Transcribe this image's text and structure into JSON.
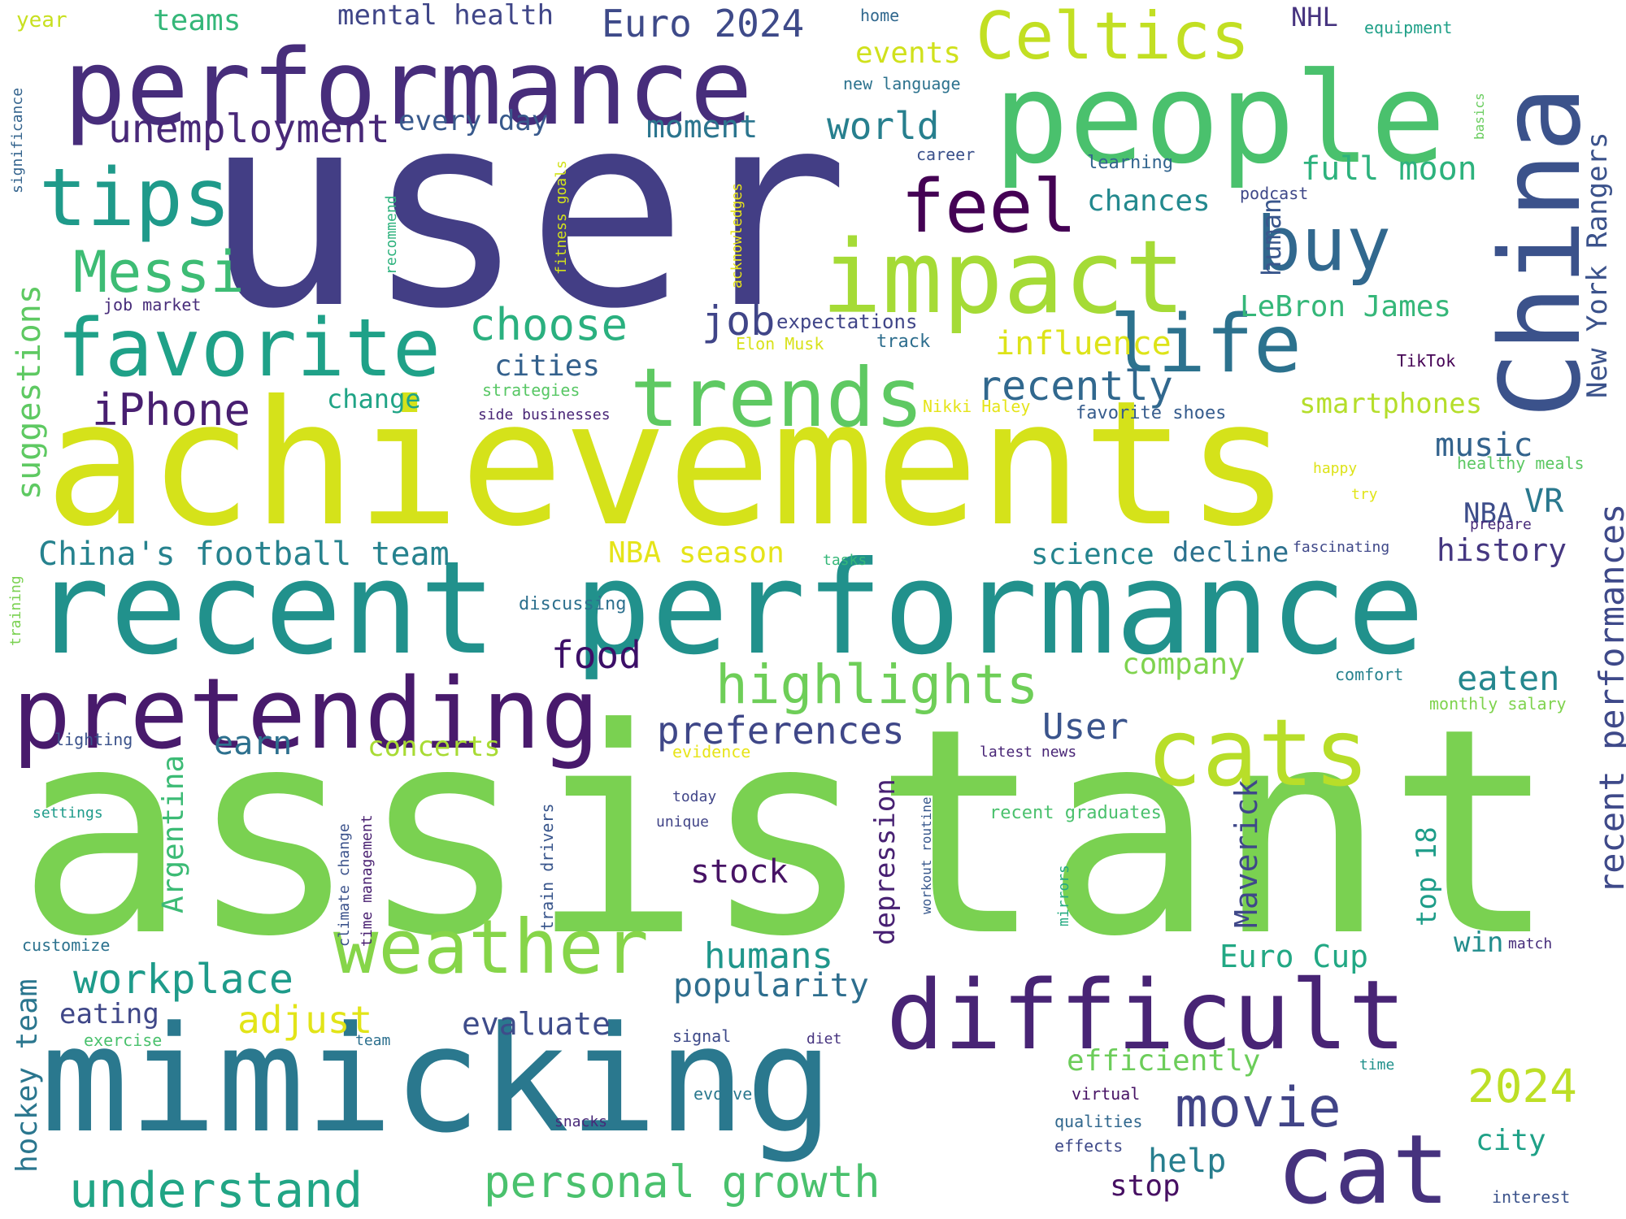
{
  "words": [
    {
      "text": "user",
      "color": "#433e85"
    },
    {
      "text": "assistant",
      "color": "#7ad151"
    },
    {
      "text": "achievements",
      "color": "#d5e21a"
    },
    {
      "text": "recent performance",
      "color": "#21918c"
    },
    {
      "text": "mimicking",
      "color": "#2a788e"
    },
    {
      "text": "performance",
      "color": "#472d7b"
    },
    {
      "text": "people",
      "color": "#4ac16d"
    },
    {
      "text": "China",
      "color": "#3b528b"
    },
    {
      "text": "difficult",
      "color": "#482475"
    },
    {
      "text": "impact",
      "color": "#a5db36"
    },
    {
      "text": "pretending",
      "color": "#481a6c"
    },
    {
      "text": "cat",
      "color": "#46327e"
    },
    {
      "text": "cats",
      "color": "#b8de29"
    },
    {
      "text": "trends",
      "color": "#5ec962"
    },
    {
      "text": "favorite",
      "color": "#1fa188"
    },
    {
      "text": "weather",
      "color": "#86d549"
    },
    {
      "text": "tips",
      "color": "#1f9a8a"
    },
    {
      "text": "life",
      "color": "#2c728e"
    },
    {
      "text": "feel",
      "color": "#440154"
    },
    {
      "text": "buy",
      "color": "#31688e"
    },
    {
      "text": "Celtics",
      "color": "#c2df23"
    },
    {
      "text": "Messi",
      "color": "#3dbc74"
    },
    {
      "text": "highlights",
      "color": "#6ece58"
    },
    {
      "text": "movie",
      "color": "#414487"
    },
    {
      "text": "understand",
      "color": "#21a585"
    },
    {
      "text": "personal growth",
      "color": "#4ac16d"
    },
    {
      "text": "workplace",
      "color": "#1e9b8a"
    },
    {
      "text": "recent performances",
      "color": "#3e4989"
    },
    {
      "text": "unemployment",
      "color": "#482878"
    },
    {
      "text": "choose",
      "color": "#2ab07f"
    },
    {
      "text": "recently",
      "color": "#31688e"
    },
    {
      "text": "iPhone",
      "color": "#481f70"
    },
    {
      "text": "suggestions",
      "color": "#5ec962"
    },
    {
      "text": "Euro 2024",
      "color": "#3e4a89"
    },
    {
      "text": "world",
      "color": "#277f8e"
    },
    {
      "text": "2024",
      "color": "#bddf26"
    },
    {
      "text": "China's football team",
      "color": "#26828e"
    },
    {
      "text": "preferences",
      "color": "#3f4788"
    },
    {
      "text": "humans",
      "color": "#1f968b"
    },
    {
      "text": "adjust",
      "color": "#e2e418"
    },
    {
      "text": "popularity",
      "color": "#2e6e8e"
    },
    {
      "text": "job",
      "color": "#404588"
    },
    {
      "text": "LeBron James",
      "color": "#35b779"
    },
    {
      "text": "New York Rangers",
      "color": "#3b528b"
    },
    {
      "text": "food",
      "color": "#3c0f67"
    },
    {
      "text": "full moon",
      "color": "#2db27d"
    },
    {
      "text": "Maverick",
      "color": "#3f4889"
    },
    {
      "text": "Argentina",
      "color": "#3cbb75"
    },
    {
      "text": "influence",
      "color": "#dde318"
    },
    {
      "text": "music",
      "color": "#33638d"
    },
    {
      "text": "mental health",
      "color": "#404688"
    },
    {
      "text": "moment",
      "color": "#2b758e"
    },
    {
      "text": "events",
      "color": "#d0e11c"
    },
    {
      "text": "cities",
      "color": "#34618d"
    },
    {
      "text": "eaten",
      "color": "#24878e"
    },
    {
      "text": "User",
      "color": "#3a548c"
    },
    {
      "text": "chances",
      "color": "#23898e"
    },
    {
      "text": "depression",
      "color": "#482173"
    },
    {
      "text": "hockey team",
      "color": "#2a768e"
    },
    {
      "text": "evaluate",
      "color": "#3e4c8a"
    },
    {
      "text": "help",
      "color": "#277e8e"
    },
    {
      "text": "Euro Cup",
      "color": "#22a884"
    },
    {
      "text": "history",
      "color": "#453781"
    },
    {
      "text": "company",
      "color": "#7fd34e"
    },
    {
      "text": "science",
      "color": "#25848e"
    },
    {
      "text": "stock",
      "color": "#471365"
    },
    {
      "text": "NBA season",
      "color": "#e5e419"
    },
    {
      "text": "decline",
      "color": "#2c718e"
    },
    {
      "text": "every day",
      "color": "#38598c"
    },
    {
      "text": "teams",
      "color": "#35b779"
    },
    {
      "text": "smartphones",
      "color": "#b5de2b"
    },
    {
      "text": "efficiently",
      "color": "#6ccd5a"
    },
    {
      "text": "top 18",
      "color": "#1e9d89"
    },
    {
      "text": "concerts",
      "color": "#a8db34"
    },
    {
      "text": "earn",
      "color": "#2d708e"
    },
    {
      "text": "eating",
      "color": "#3f4788"
    },
    {
      "text": "win",
      "color": "#228d8d"
    },
    {
      "text": "stop",
      "color": "#471063"
    },
    {
      "text": "city",
      "color": "#1fa187"
    },
    {
      "text": "change",
      "color": "#20a486"
    },
    {
      "text": "NBA",
      "color": "#3d4d8a"
    },
    {
      "text": "VR",
      "color": "#2a788e"
    },
    {
      "text": "NHL",
      "color": "#46337f"
    },
    {
      "text": "human",
      "color": "#39568c"
    },
    {
      "text": "year",
      "color": "#c8e020"
    },
    {
      "text": "expectations",
      "color": "#404588"
    },
    {
      "text": "Elon Musk",
      "color": "#d8e219"
    },
    {
      "text": "strategies",
      "color": "#58c765"
    },
    {
      "text": "side businesses",
      "color": "#482576"
    },
    {
      "text": "Nikki Haley",
      "color": "#e5e419"
    },
    {
      "text": "favorite shoes",
      "color": "#365c8d"
    },
    {
      "text": "TikTok",
      "color": "#440154"
    },
    {
      "text": "track",
      "color": "#2e6e8e"
    },
    {
      "text": "job market",
      "color": "#472c7a"
    },
    {
      "text": "podcast",
      "color": "#3f4889"
    },
    {
      "text": "learning",
      "color": "#32648e"
    },
    {
      "text": "career",
      "color": "#3b518b"
    },
    {
      "text": "new language",
      "color": "#2c728e"
    },
    {
      "text": "home",
      "color": "#31688e"
    },
    {
      "text": "equipment",
      "color": "#1fa088"
    },
    {
      "text": "significance",
      "color": "#33638d"
    },
    {
      "text": "recommend",
      "color": "#2db27d"
    },
    {
      "text": "fitness goals",
      "color": "#d2e21b"
    },
    {
      "text": "acknowledges",
      "color": "#e7e419"
    },
    {
      "text": "basics",
      "color": "#67cc5c"
    },
    {
      "text": "happy",
      "color": "#dde318"
    },
    {
      "text": "try",
      "color": "#e1e418"
    },
    {
      "text": "healthy meals",
      "color": "#5cc863"
    },
    {
      "text": "prepare",
      "color": "#472a7a"
    },
    {
      "text": "fascinating",
      "color": "#3f4889"
    },
    {
      "text": "tasks",
      "color": "#35b779"
    },
    {
      "text": "training",
      "color": "#7ad151"
    },
    {
      "text": "discussing",
      "color": "#2d708e"
    },
    {
      "text": "comfort",
      "color": "#26828e"
    },
    {
      "text": "monthly salary",
      "color": "#7fd34e"
    },
    {
      "text": "lighting",
      "color": "#3b528b"
    },
    {
      "text": "evidence",
      "color": "#e7e419"
    },
    {
      "text": "latest news",
      "color": "#482576"
    },
    {
      "text": "today",
      "color": "#404588"
    },
    {
      "text": "unique",
      "color": "#414487"
    },
    {
      "text": "settings",
      "color": "#1e9b8a"
    },
    {
      "text": "climate change",
      "color": "#3b528b"
    },
    {
      "text": "time management",
      "color": "#481f70"
    },
    {
      "text": "train drivers",
      "color": "#39568c"
    },
    {
      "text": "workout routine",
      "color": "#38588c"
    },
    {
      "text": "mirrors",
      "color": "#25ab82"
    },
    {
      "text": "recent graduates",
      "color": "#4ac16d"
    },
    {
      "text": "customize",
      "color": "#2c728e"
    },
    {
      "text": "match",
      "color": "#472d7b"
    },
    {
      "text": "exercise",
      "color": "#4ac16d"
    },
    {
      "text": "team",
      "color": "#2d708e"
    },
    {
      "text": "signal",
      "color": "#3e4a89"
    },
    {
      "text": "diet",
      "color": "#46337f"
    },
    {
      "text": "time",
      "color": "#21918c"
    },
    {
      "text": "evolve",
      "color": "#2a788e"
    },
    {
      "text": "virtual",
      "color": "#471365"
    },
    {
      "text": "snacks",
      "color": "#482878"
    },
    {
      "text": "qualities",
      "color": "#31688e"
    },
    {
      "text": "effects",
      "color": "#3e4989"
    },
    {
      "text": "interest",
      "color": "#3b528b"
    }
  ]
}
